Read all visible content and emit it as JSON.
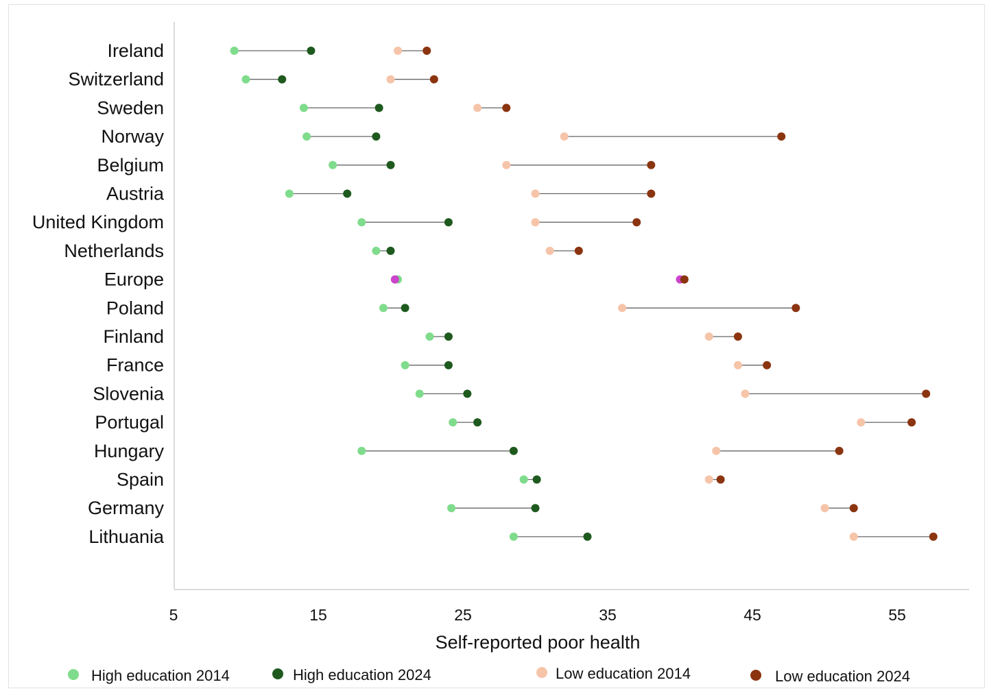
{
  "chart_data": {
    "type": "scatter",
    "subtype": "dumbbell",
    "title": "",
    "xlabel": "Self-reported poor health",
    "ylabel": "",
    "xlim": [
      5,
      60
    ],
    "xticks": [
      5,
      15,
      25,
      35,
      45,
      55
    ],
    "grid": false,
    "legend_position": "bottom",
    "categories": [
      "Ireland",
      "Switzerland",
      "Sweden",
      "Norway",
      "Belgium",
      "Austria",
      "United Kingdom",
      "Netherlands",
      "Europe",
      "Poland",
      "Finland",
      "France",
      "Slovenia",
      "Portugal",
      "Hungary",
      "Spain",
      "Germany",
      "Lithuania"
    ],
    "series": [
      {
        "name": "High education 2014",
        "color": "#7fdc8c",
        "values": [
          9.2,
          10,
          14,
          14.2,
          16,
          13,
          18,
          19,
          20.5,
          19.5,
          22.7,
          21,
          22,
          24.3,
          18,
          29.2,
          24.2,
          28.5
        ]
      },
      {
        "name": "High education 2024",
        "color": "#1e5a1e",
        "values": [
          14.5,
          12.5,
          19.2,
          19,
          20,
          17,
          24,
          20,
          20.3,
          21,
          24,
          24,
          25.3,
          26,
          28.5,
          30.1,
          30,
          33.6
        ]
      },
      {
        "name": "Low education 2014",
        "color": "#f6c4a8",
        "values": [
          20.5,
          20,
          26,
          32,
          28,
          30,
          30,
          31,
          40,
          36,
          42,
          44,
          44.5,
          52.5,
          42.5,
          42,
          50,
          52
        ]
      },
      {
        "name": "Low education 2024",
        "color": "#8b3410",
        "values": [
          22.5,
          23,
          28,
          47,
          38,
          38,
          37,
          33,
          40.3,
          48,
          44,
          46,
          57,
          56,
          51,
          42.8,
          52,
          57.5
        ]
      }
    ],
    "highlight": {
      "category": "Europe",
      "color": "#cc44cc"
    },
    "connector_color": "#666666"
  }
}
